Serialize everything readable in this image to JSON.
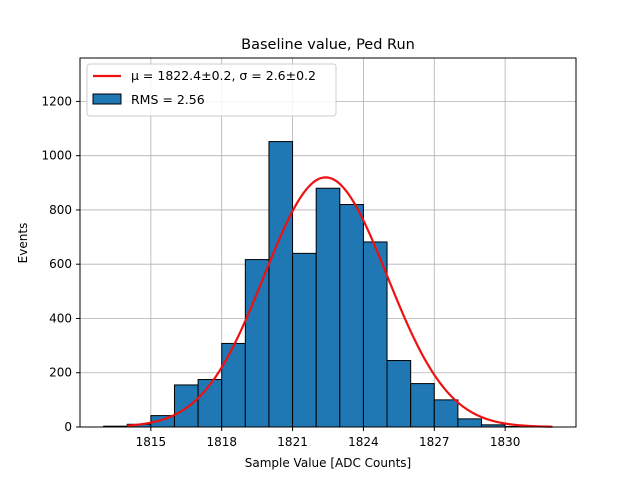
{
  "chart_data": {
    "type": "bar",
    "title": "Baseline value, Ped Run",
    "xlabel": "Sample Value [ADC Counts]",
    "ylabel": "Events",
    "xlim": [
      1812.0,
      1833.0
    ],
    "ylim": [
      0,
      1360
    ],
    "xticks": [
      1815,
      1818,
      1821,
      1824,
      1827,
      1830
    ],
    "yticks": [
      0,
      200,
      400,
      600,
      800,
      1000,
      1200
    ],
    "grid": true,
    "bin_width": 1,
    "bins": [
      {
        "left": 1813,
        "value": 3
      },
      {
        "left": 1814,
        "value": 10
      },
      {
        "left": 1815,
        "value": 42
      },
      {
        "left": 1816,
        "value": 155
      },
      {
        "left": 1817,
        "value": 175
      },
      {
        "left": 1818,
        "value": 308
      },
      {
        "left": 1819,
        "value": 617
      },
      {
        "left": 1820,
        "value": 1052
      },
      {
        "left": 1821,
        "value": 640
      },
      {
        "left": 1822,
        "value": 880
      },
      {
        "left": 1823,
        "value": 820
      },
      {
        "left": 1824,
        "value": 682
      },
      {
        "left": 1825,
        "value": 245
      },
      {
        "left": 1826,
        "value": 160
      },
      {
        "left": 1827,
        "value": 100
      },
      {
        "left": 1828,
        "value": 30
      },
      {
        "left": 1829,
        "value": 8
      },
      {
        "left": 1830,
        "value": 2
      }
    ],
    "fit": {
      "type": "gaussian",
      "mu": 1822.4,
      "sigma": 2.6,
      "amplitude": 920,
      "x_range": [
        1814.0,
        1832.0
      ]
    },
    "legend": {
      "placement": "top-left",
      "entries": [
        {
          "kind": "line",
          "label": "μ = 1822.4±0.2, σ = 2.6±0.2"
        },
        {
          "kind": "patch",
          "label": "RMS = 2.56"
        }
      ]
    },
    "colors": {
      "bar_fill": "#1f77b4",
      "bar_edge": "#000000",
      "fit_line": "#ee1111",
      "grid": "#b0b0b0"
    }
  }
}
